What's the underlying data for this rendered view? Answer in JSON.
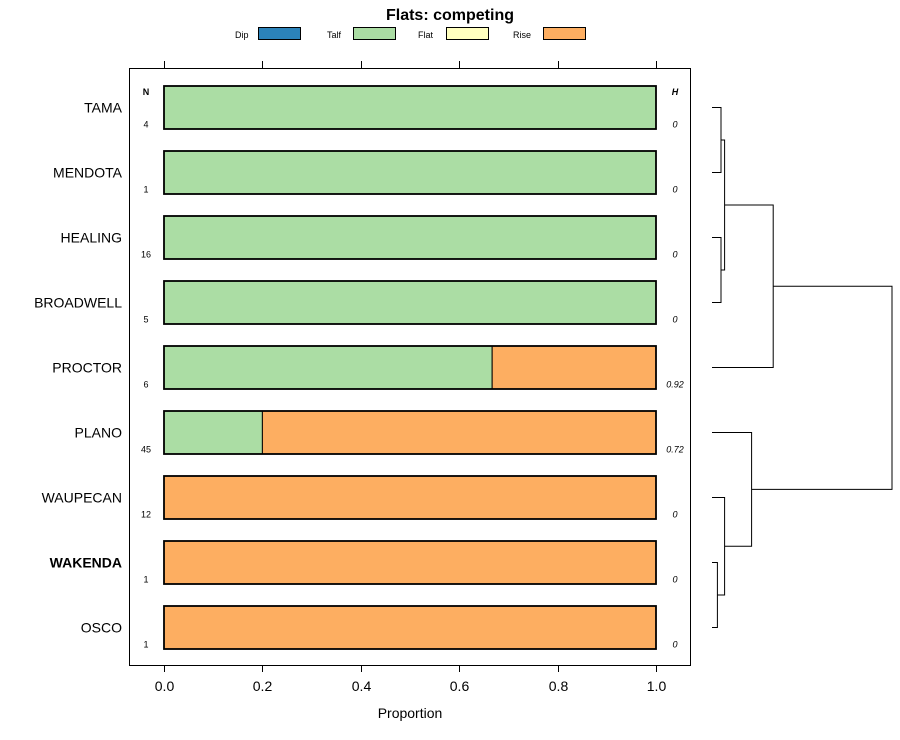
{
  "chart_data": {
    "type": "bar",
    "orientation": "horizontal",
    "stacked": true,
    "title": "Flats: competing",
    "xlabel": "Proportion",
    "xlim": [
      -0.07,
      1.07
    ],
    "xticks": [
      "0.0",
      "0.2",
      "0.4",
      "0.6",
      "0.8",
      "1.0"
    ],
    "legend": {
      "position": "top",
      "entries": [
        {
          "name": "Dip",
          "color": "#2b83ba"
        },
        {
          "name": "Talf",
          "color": "#abdda4"
        },
        {
          "name": "Flat",
          "color": "#ffffbf"
        },
        {
          "name": "Rise",
          "color": "#fdae61"
        }
      ]
    },
    "n_header": "N",
    "h_header": "H",
    "categories": [
      "TAMA",
      "MENDOTA",
      "HEALING",
      "BROADWELL",
      "PROCTOR",
      "PLANO",
      "WAUPECAN",
      "WAKENDA",
      "OSCO"
    ],
    "bold_categories": [
      "WAKENDA"
    ],
    "n_values": [
      "4",
      "1",
      "16",
      "5",
      "6",
      "45",
      "12",
      "1",
      "1"
    ],
    "h_values": [
      "0",
      "0",
      "0",
      "0",
      "0.92",
      "0.72",
      "0",
      "0",
      "0"
    ],
    "series": [
      {
        "name": "Dip",
        "values": [
          0,
          0,
          0,
          0,
          0,
          0,
          0,
          0,
          0
        ]
      },
      {
        "name": "Talf",
        "values": [
          1,
          1,
          1,
          1,
          0.667,
          0.2,
          0,
          0,
          0
        ]
      },
      {
        "name": "Flat",
        "values": [
          0,
          0,
          0,
          0,
          0,
          0,
          0,
          0,
          0
        ]
      },
      {
        "name": "Rise",
        "values": [
          0,
          0,
          0,
          0,
          0.333,
          0.8,
          1,
          1,
          1
        ]
      }
    ],
    "dendrogram": {
      "leaves": [
        "TAMA",
        "MENDOTA",
        "HEALING",
        "BROADWELL",
        "PROCTOR",
        "PLANO",
        "WAUPECAN",
        "WAKENDA",
        "OSCO"
      ],
      "merges": [
        {
          "a": "L:TAMA",
          "b": "L:MENDOTA",
          "height": 0.05
        },
        {
          "a": "L:HEALING",
          "b": "L:BROADWELL",
          "height": 0.05
        },
        {
          "a": "N:0",
          "b": "N:1",
          "height": 0.07
        },
        {
          "a": "L:WAKENDA",
          "b": "L:OSCO",
          "height": 0.03
        },
        {
          "a": "L:WAUPECAN",
          "b": "N:3",
          "height": 0.07
        },
        {
          "a": "N:2",
          "b": "L:PROCTOR",
          "height": 0.34
        },
        {
          "a": "L:PLANO",
          "b": "N:4",
          "height": 0.22
        },
        {
          "a": "N:5",
          "b": "N:6",
          "height": 1.0
        }
      ]
    }
  }
}
